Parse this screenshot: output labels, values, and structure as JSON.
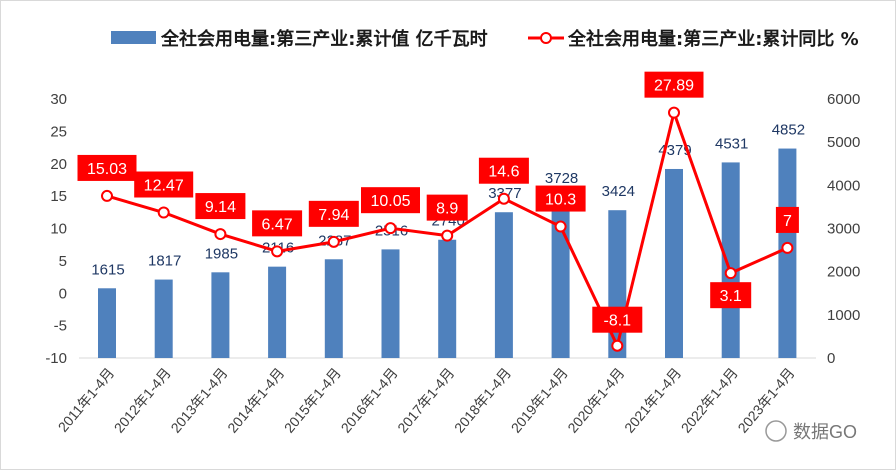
{
  "chart_data": {
    "type": "bar+line",
    "categories": [
      "2011年1-4月",
      "2012年1-4月",
      "2013年1-4月",
      "2014年1-4月",
      "2015年1-4月",
      "2016年1-4月",
      "2017年1-4月",
      "2018年1-4月",
      "2019年1-4月",
      "2020年1-4月",
      "2021年1-4月",
      "2022年1-4月",
      "2023年1-4月"
    ],
    "series": [
      {
        "name": "全社会用电量:第三产业:累计值 亿千瓦时",
        "type": "bar",
        "axis": "right",
        "color": "#4f81bd",
        "values": [
          1615,
          1817,
          1985,
          2116,
          2287,
          2516,
          2740,
          3377,
          3728,
          3424,
          4379,
          4531,
          4852
        ]
      },
      {
        "name": "全社会用电量:第三产业:累计同比 %",
        "type": "line",
        "axis": "left",
        "color": "#ff0000",
        "values": [
          15.03,
          12.47,
          9.14,
          6.47,
          7.94,
          10.05,
          8.9,
          14.6,
          10.3,
          -8.1,
          27.89,
          3.1,
          7
        ]
      }
    ],
    "left_axis": {
      "range": [
        -10,
        30
      ],
      "ticks": [
        -10,
        -5,
        0,
        5,
        10,
        15,
        20,
        25,
        30
      ]
    },
    "right_axis": {
      "range": [
        0,
        6000
      ],
      "ticks": [
        0,
        1000,
        2000,
        3000,
        4000,
        5000,
        6000
      ]
    },
    "legend": "top",
    "grid": false
  },
  "watermark": "数据GO"
}
